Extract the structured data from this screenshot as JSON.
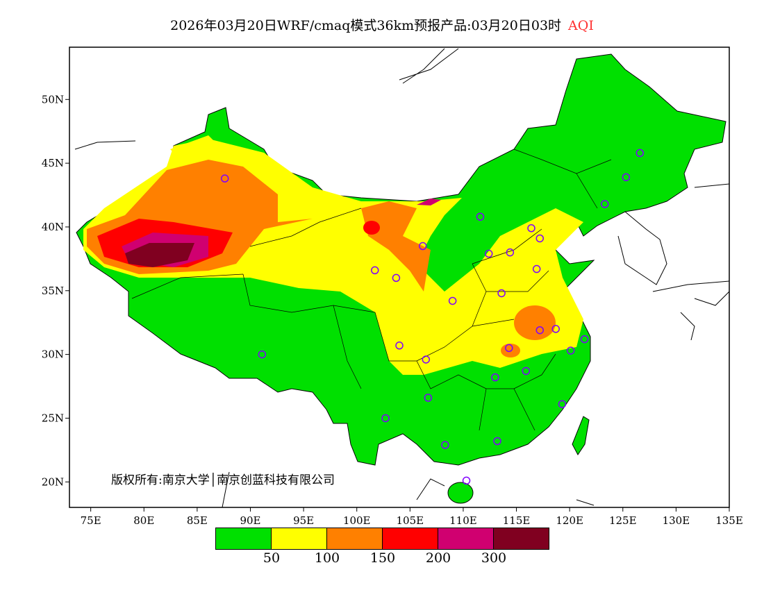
{
  "title": {
    "main": "2026年03月20日WRF/cmaq模式36km预报产品:03月20日03时",
    "variable": "AQI"
  },
  "copyright": "版权所有:南京大学│南京创蓝科技有限公司",
  "axes": {
    "lon_ticks": [
      "75E",
      "80E",
      "85E",
      "90E",
      "95E",
      "100E",
      "105E",
      "110E",
      "115E",
      "120E",
      "125E",
      "130E",
      "135E"
    ],
    "lat_ticks": [
      "50N",
      "45N",
      "40N",
      "35N",
      "30N",
      "25N",
      "20N"
    ],
    "lon_range": [
      73,
      135
    ],
    "lat_range": [
      18,
      54.1
    ]
  },
  "legend": {
    "colors": [
      "#00e000",
      "#ffff00",
      "#ff8000",
      "#ff0000",
      "#d00070",
      "#800020"
    ],
    "labels": [
      "50",
      "100",
      "150",
      "200",
      "300"
    ]
  },
  "cities": [
    [
      87.6,
      43.8
    ],
    [
      91.1,
      30.0
    ],
    [
      101.7,
      36.6
    ],
    [
      103.7,
      36.0
    ],
    [
      106.2,
      38.5
    ],
    [
      109.0,
      34.2
    ],
    [
      104.0,
      30.7
    ],
    [
      106.5,
      29.6
    ],
    [
      106.7,
      26.6
    ],
    [
      102.7,
      25.0
    ],
    [
      108.3,
      22.9
    ],
    [
      110.3,
      20.1
    ],
    [
      113.2,
      23.2
    ],
    [
      113.0,
      28.2
    ],
    [
      114.3,
      30.5
    ],
    [
      115.9,
      28.7
    ],
    [
      119.3,
      26.1
    ],
    [
      120.1,
      30.3
    ],
    [
      121.4,
      31.2
    ],
    [
      118.7,
      32.0
    ],
    [
      117.2,
      31.9
    ],
    [
      113.6,
      34.8
    ],
    [
      112.4,
      37.9
    ],
    [
      114.4,
      38.0
    ],
    [
      116.4,
      39.9
    ],
    [
      117.2,
      39.1
    ],
    [
      116.9,
      36.7
    ],
    [
      111.6,
      40.8
    ],
    [
      123.3,
      41.8
    ],
    [
      125.3,
      43.9
    ],
    [
      126.6,
      45.8
    ]
  ]
}
